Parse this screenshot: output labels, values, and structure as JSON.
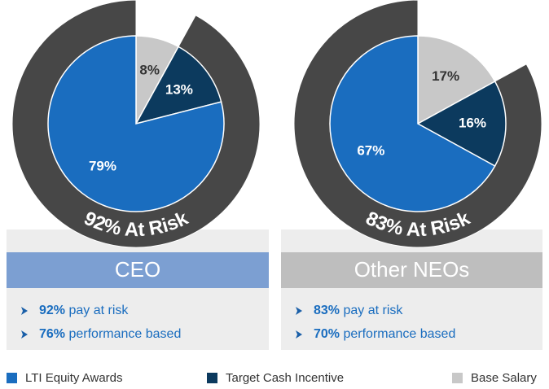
{
  "chart_data": [
    {
      "type": "pie",
      "label": "CEO",
      "values": [
        79,
        13,
        8
      ],
      "value_labels": [
        "79%",
        "13%",
        "8%"
      ],
      "risk": {
        "value": 92,
        "label": "92% At Risk"
      },
      "notes": [
        {
          "value": 92,
          "label": "92%",
          "text": "pay at risk"
        },
        {
          "value": 76,
          "label": "76%",
          "text": "performance based"
        }
      ]
    },
    {
      "type": "pie",
      "label": "Other NEOs",
      "values": [
        67,
        16,
        17
      ],
      "value_labels": [
        "67%",
        "16%",
        "17%"
      ],
      "risk": {
        "value": 83,
        "label": "83% At Risk"
      },
      "notes": [
        {
          "value": 83,
          "label": "83%",
          "text": "pay at risk"
        },
        {
          "value": 70,
          "label": "70%",
          "text": "performance based"
        }
      ]
    }
  ],
  "legend": {
    "names": [
      "LTI Equity Awards",
      "Target Cash Incentive",
      "Base Salary"
    ],
    "colors": [
      "#1a6dbf",
      "#0c3a5e",
      "#c8c8c8"
    ]
  }
}
